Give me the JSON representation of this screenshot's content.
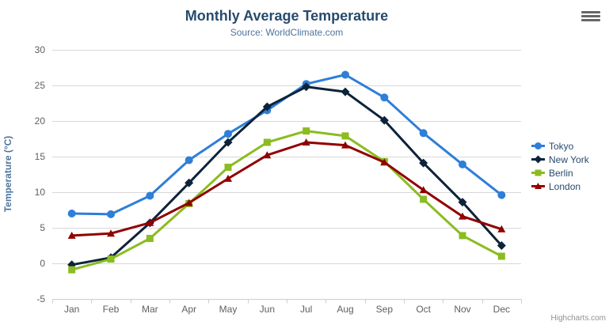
{
  "chart_data": {
    "type": "line",
    "title": "Monthly Average Temperature",
    "subtitle": "Source: WorldClimate.com",
    "xlabel": "",
    "ylabel": "Temperature (°C)",
    "categories": [
      "Jan",
      "Feb",
      "Mar",
      "Apr",
      "May",
      "Jun",
      "Jul",
      "Aug",
      "Sep",
      "Oct",
      "Nov",
      "Dec"
    ],
    "ylim": [
      -5,
      30
    ],
    "yticks": [
      -5,
      0,
      5,
      10,
      15,
      20,
      25,
      30
    ],
    "grid": "horizontal",
    "legend_position": "right",
    "series": [
      {
        "name": "Tokyo",
        "color": "#2f7ed8",
        "marker": "circle",
        "values": [
          7.0,
          6.9,
          9.5,
          14.5,
          18.2,
          21.5,
          25.2,
          26.5,
          23.3,
          18.3,
          13.9,
          9.6
        ]
      },
      {
        "name": "New York",
        "color": "#0d233a",
        "marker": "diamond",
        "values": [
          -0.2,
          0.8,
          5.7,
          11.3,
          17.0,
          22.0,
          24.8,
          24.1,
          20.1,
          14.1,
          8.6,
          2.5
        ]
      },
      {
        "name": "Berlin",
        "color": "#8bbc21",
        "marker": "square",
        "values": [
          -0.9,
          0.6,
          3.5,
          8.4,
          13.5,
          17.0,
          18.6,
          17.9,
          14.3,
          9.0,
          3.9,
          1.0
        ]
      },
      {
        "name": "London",
        "color": "#910000",
        "marker": "triangle",
        "values": [
          3.9,
          4.2,
          5.7,
          8.5,
          11.9,
          15.2,
          17.0,
          16.6,
          14.2,
          10.3,
          6.6,
          4.8
        ]
      }
    ]
  },
  "credits": "Highcharts.com",
  "colors": {
    "title": "#274b6d",
    "subtitle": "#4d759e",
    "axis_title": "#4d759e",
    "axis_labels": "#606060",
    "grid_line": "#d8d8d8",
    "axis_line": "#c0d0e0",
    "legend_text": "#274b6d",
    "menu_icon": "#666666",
    "credits_text": "#909090"
  }
}
